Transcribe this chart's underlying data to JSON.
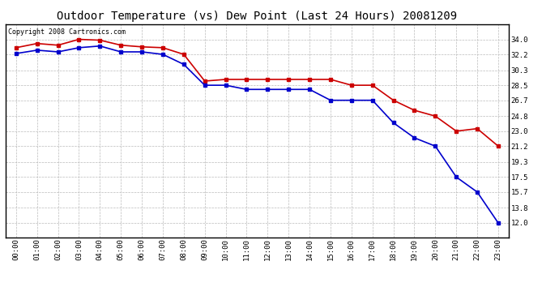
{
  "title": "Outdoor Temperature (vs) Dew Point (Last 24 Hours) 20081209",
  "copyright_text": "Copyright 2008 Cartronics.com",
  "x_labels": [
    "00:00",
    "01:00",
    "02:00",
    "03:00",
    "04:00",
    "05:00",
    "06:00",
    "07:00",
    "08:00",
    "09:00",
    "10:00",
    "11:00",
    "12:00",
    "13:00",
    "14:00",
    "15:00",
    "16:00",
    "17:00",
    "18:00",
    "19:00",
    "20:00",
    "21:00",
    "22:00",
    "23:00"
  ],
  "temp_data": [
    33.0,
    33.5,
    33.3,
    34.0,
    33.9,
    33.3,
    33.1,
    33.0,
    32.2,
    29.0,
    29.2,
    29.2,
    29.2,
    29.2,
    29.2,
    29.2,
    28.5,
    28.5,
    26.7,
    25.5,
    24.8,
    23.0,
    23.3,
    21.2
  ],
  "dew_data": [
    32.3,
    32.7,
    32.5,
    33.0,
    33.2,
    32.5,
    32.5,
    32.2,
    31.0,
    28.5,
    28.5,
    28.0,
    28.0,
    28.0,
    28.0,
    26.7,
    26.7,
    26.7,
    24.0,
    22.2,
    21.2,
    17.5,
    15.7,
    12.0
  ],
  "temp_color": "#cc0000",
  "dew_color": "#0000cc",
  "bg_color": "#ffffff",
  "grid_color": "#bbbbbb",
  "ylim_min": 10.3,
  "ylim_max": 35.8,
  "yticks": [
    12.0,
    13.8,
    15.7,
    17.5,
    19.3,
    21.2,
    23.0,
    24.8,
    26.7,
    28.5,
    30.3,
    32.2,
    34.0
  ],
  "marker": "s",
  "marker_size": 3,
  "line_width": 1.2,
  "title_fontsize": 10,
  "tick_fontsize": 6.5,
  "copyright_fontsize": 6
}
